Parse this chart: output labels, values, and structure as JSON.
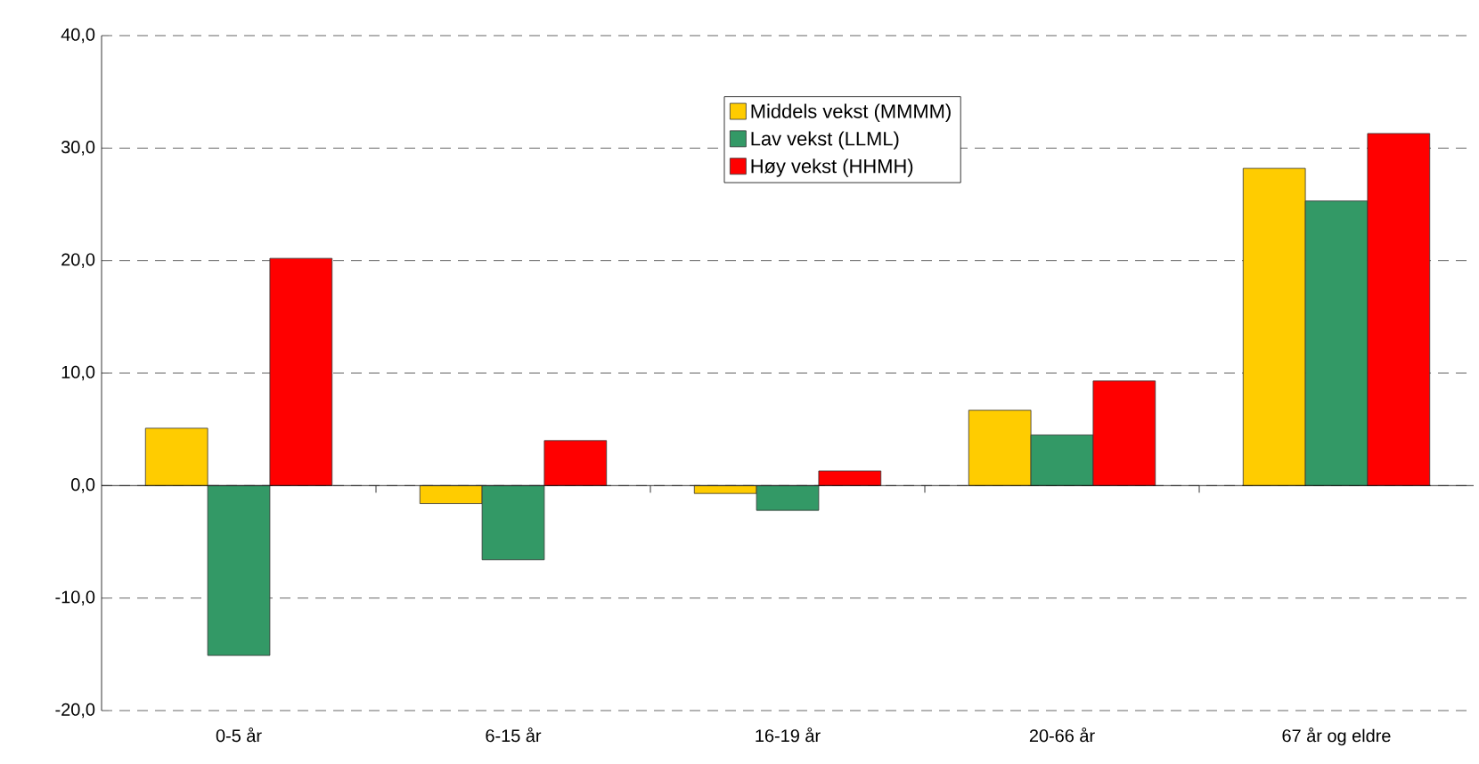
{
  "chart_data": {
    "type": "bar",
    "categories": [
      "0-5 år",
      "6-15 år",
      "16-19 år",
      "20-66 år",
      "67 år og eldre"
    ],
    "series": [
      {
        "name": "Middels vekst (MMMM)",
        "color": "#ffcc00",
        "values": [
          5.1,
          -1.6,
          -0.7,
          6.7,
          28.2
        ]
      },
      {
        "name": "Lav vekst (LLML)",
        "color": "#339966",
        "values": [
          -15.1,
          -6.6,
          -2.2,
          4.5,
          25.3
        ]
      },
      {
        "name": "Høy vekst (HHMH)",
        "color": "#ff0000",
        "values": [
          20.2,
          4.0,
          1.3,
          9.3,
          31.3
        ]
      }
    ],
    "ylim": [
      -20,
      40
    ],
    "yticks": [
      {
        "value": -20,
        "label": "-20,0"
      },
      {
        "value": -10,
        "label": "-10,0"
      },
      {
        "value": 0,
        "label": "0,0"
      },
      {
        "value": 10,
        "label": "10,0"
      },
      {
        "value": 20,
        "label": "20,0"
      },
      {
        "value": 30,
        "label": "30,0"
      },
      {
        "value": 40,
        "label": "40,0"
      }
    ],
    "grid": "y",
    "legend": "top"
  }
}
